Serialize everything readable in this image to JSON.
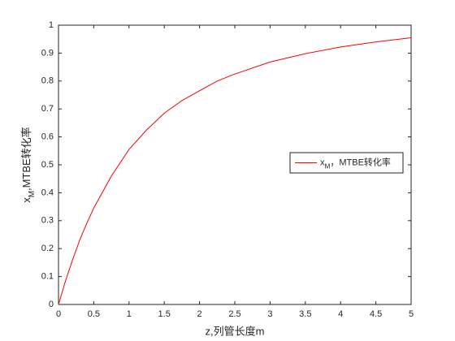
{
  "chart_data": {
    "type": "line",
    "xlabel": "z,列管长度m",
    "ylabel": "xM,MTBE转化率",
    "x": [
      0,
      0.1,
      0.2,
      0.3,
      0.4,
      0.5,
      0.75,
      1,
      1.25,
      1.5,
      1.75,
      2,
      2.25,
      2.5,
      3,
      3.5,
      4,
      4.5,
      5
    ],
    "series": [
      {
        "name": "xM，MTBE转化率",
        "color": "#ff0000",
        "values": [
          0,
          0.085,
          0.16,
          0.23,
          0.29,
          0.345,
          0.46,
          0.555,
          0.625,
          0.685,
          0.73,
          0.765,
          0.8,
          0.825,
          0.868,
          0.898,
          0.922,
          0.94,
          0.955
        ]
      }
    ],
    "xlim": [
      0,
      5
    ],
    "ylim": [
      0,
      1
    ],
    "xticks": [
      0,
      0.5,
      1,
      1.5,
      2,
      2.5,
      3,
      3.5,
      4,
      4.5,
      5
    ],
    "yticks": [
      0,
      0.1,
      0.2,
      0.3,
      0.4,
      0.5,
      0.6,
      0.7,
      0.8,
      0.9,
      1
    ],
    "grid": false,
    "legend": "east"
  }
}
